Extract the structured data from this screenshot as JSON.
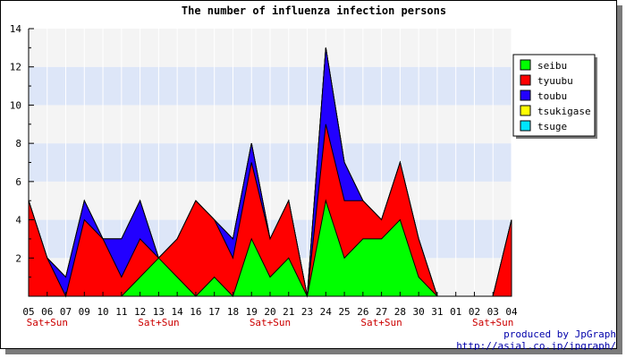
{
  "chart_data": {
    "type": "area",
    "stacked": true,
    "title": "The number of influenza infection persons",
    "xlabel": "",
    "ylabel": "",
    "categories": [
      "05",
      "06",
      "07",
      "09",
      "10",
      "11",
      "12",
      "13",
      "14",
      "16",
      "17",
      "18",
      "19",
      "20",
      "21",
      "23",
      "24",
      "25",
      "26",
      "27",
      "28",
      "30",
      "31",
      "01",
      "02",
      "03",
      "04"
    ],
    "weekend_label": "Sat+Sun",
    "weekend_categories": [
      "06",
      "13",
      "20",
      "27",
      "03"
    ],
    "ylim": [
      0,
      14
    ],
    "yticks": [
      2,
      4,
      6,
      8,
      10,
      12,
      14
    ],
    "band_colors": [
      "#f4f4f4",
      "#dde6f8"
    ],
    "legend_position": "right",
    "series": [
      {
        "name": "seibu",
        "color": "#00ff00",
        "values": [
          0,
          0,
          0,
          0,
          0,
          0,
          1,
          2,
          1,
          0,
          1,
          0,
          3,
          1,
          2,
          0,
          5,
          2,
          3,
          3,
          4,
          1,
          0,
          0,
          0,
          0,
          0
        ]
      },
      {
        "name": "tyuubu",
        "color": "#ff0000",
        "values": [
          5,
          2,
          0,
          4,
          3,
          1,
          2,
          0,
          2,
          5,
          3,
          2,
          4,
          2,
          3,
          0,
          4,
          3,
          2,
          1,
          3,
          2,
          0,
          0,
          0,
          0,
          4
        ]
      },
      {
        "name": "toubu",
        "color": "#2200ff",
        "values": [
          0,
          0,
          1,
          1,
          0,
          2,
          2,
          0,
          0,
          0,
          0,
          1,
          1,
          0,
          0,
          0,
          4,
          2,
          0,
          0,
          0,
          0,
          0,
          0,
          0,
          0,
          0
        ]
      },
      {
        "name": "tsukigase",
        "color": "#ffff00",
        "values": [
          0,
          0,
          0,
          0,
          0,
          0,
          0,
          0,
          0,
          0,
          0,
          0,
          0,
          0,
          0,
          0,
          0,
          0,
          0,
          0,
          0,
          0,
          0,
          0,
          0,
          0,
          0
        ]
      },
      {
        "name": "tsuge",
        "color": "#00e5ff",
        "values": [
          0,
          0,
          0,
          0,
          0,
          0,
          0,
          0,
          0,
          0,
          0,
          0,
          0,
          0,
          0,
          0,
          0,
          0,
          0,
          0,
          0,
          0,
          0,
          0,
          0,
          0,
          0
        ]
      }
    ],
    "credits": [
      "produced by JpGraph",
      "http://asial.co.jp/jpgraph/"
    ]
  }
}
